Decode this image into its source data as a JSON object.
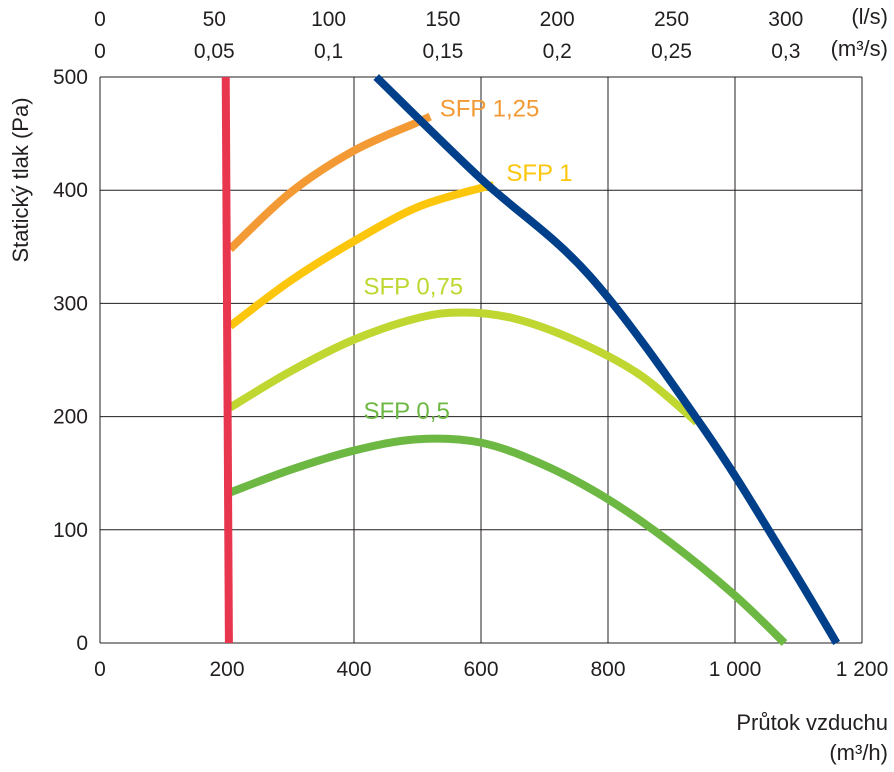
{
  "chart_data": {
    "type": "line",
    "xlabel": "Průtok vzduchu",
    "xunit": "(m³/h)",
    "ylabel": "Statický tlak (Pa)",
    "xlim": [
      0,
      1200
    ],
    "ylim": [
      0,
      500
    ],
    "x_ticks": [
      "0",
      "200",
      "400",
      "600",
      "800",
      "1 000",
      "1 200"
    ],
    "x_tick_values": [
      0,
      200,
      400,
      600,
      800,
      1000,
      1200
    ],
    "y_ticks": [
      "0",
      "100",
      "200",
      "300",
      "400",
      "500"
    ],
    "y_tick_values": [
      0,
      100,
      200,
      300,
      400,
      500
    ],
    "grid": true,
    "top_axes": [
      {
        "unit": "(l/s)",
        "ticks": [
          "0",
          "50",
          "100",
          "150",
          "200",
          "250",
          "300"
        ],
        "positions_m3h": [
          0,
          180,
          360,
          540,
          720,
          900,
          1080
        ]
      },
      {
        "unit": "(m³/s)",
        "ticks": [
          "0",
          "0,05",
          "0,1",
          "0,15",
          "0,2",
          "0,25",
          "0,3"
        ],
        "positions_m3h": [
          0,
          180,
          360,
          540,
          720,
          900,
          1080
        ]
      }
    ],
    "series": [
      {
        "name": "SFP 0,5",
        "color": "#6db843",
        "x": [
          205,
          300,
          400,
          500,
          600,
          700,
          800,
          900,
          1000,
          1078
        ],
        "y": [
          133,
          153,
          170,
          180,
          177,
          157,
          127,
          88,
          42,
          0
        ]
      },
      {
        "name": "SFP 0,75",
        "color": "#bfd730",
        "x": [
          205,
          300,
          400,
          500,
          570,
          650,
          750,
          850,
          940
        ],
        "y": [
          208,
          240,
          268,
          287,
          292,
          287,
          267,
          237,
          195
        ]
      },
      {
        "name": "SFP 1",
        "color": "#fcc60d",
        "x": [
          205,
          300,
          400,
          500,
          600,
          620
        ],
        "y": [
          280,
          320,
          355,
          385,
          402,
          404
        ]
      },
      {
        "name": "SFP 1,25",
        "color": "#f39a35",
        "x": [
          205,
          300,
          400,
          500,
          520
        ],
        "y": [
          348,
          398,
          435,
          460,
          465
        ]
      },
      {
        "name": "",
        "color": "#003f8a",
        "x": [
          435,
          600,
          770,
          950,
          1080,
          1160
        ],
        "y": [
          500,
          410,
          325,
          190,
          75,
          0
        ]
      },
      {
        "name": "",
        "color": "#e8364f",
        "x": [
          198,
          203
        ],
        "y": [
          500,
          0
        ]
      }
    ],
    "labels": [
      {
        "text": "SFP 1,25",
        "x": 535,
        "y": 465,
        "color": "#f39a35"
      },
      {
        "text": "SFP 1",
        "x": 640,
        "y": 408,
        "color": "#fcc60d"
      },
      {
        "text": "SFP 0,75",
        "x": 415,
        "y": 308,
        "color": "#bfd730"
      },
      {
        "text": "SFP 0,5",
        "x": 415,
        "y": 198,
        "color": "#6db843"
      }
    ]
  }
}
